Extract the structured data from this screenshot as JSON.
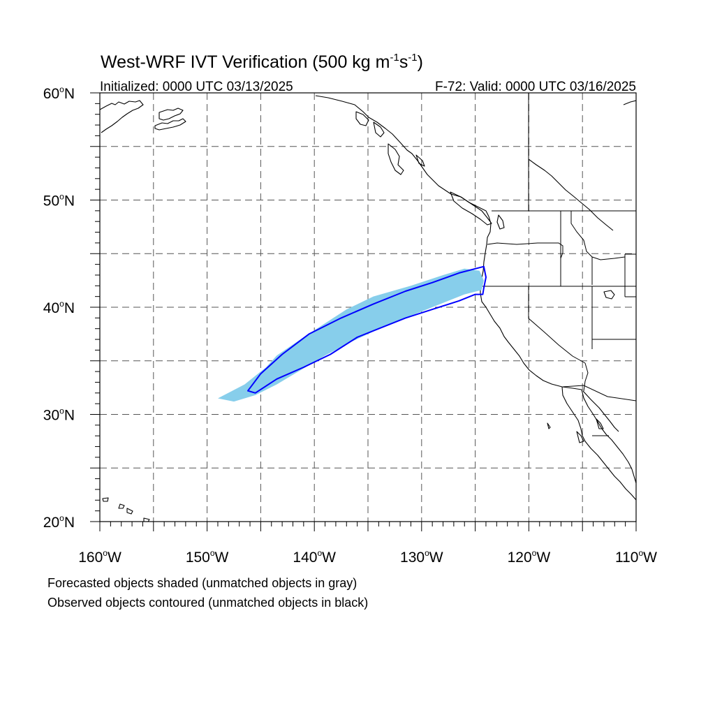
{
  "title": {
    "prefix": "West-WRF IVT Verification (500 kg m",
    "exp1": "-1",
    "mid": "s",
    "exp2": "-1",
    "suffix": ")"
  },
  "subtitle_left": "Initialized: 0000 UTC 03/13/2025",
  "subtitle_right": "F-72: Valid: 0000 UTC 03/16/2025",
  "axes": {
    "lon_range": [
      -160,
      -110
    ],
    "lat_range": [
      20,
      60
    ],
    "x_ticks": [
      {
        "value": -160,
        "label": "160",
        "hemi": "W"
      },
      {
        "value": -150,
        "label": "150",
        "hemi": "W"
      },
      {
        "value": -140,
        "label": "140",
        "hemi": "W"
      },
      {
        "value": -130,
        "label": "130",
        "hemi": "W"
      },
      {
        "value": -120,
        "label": "120",
        "hemi": "W"
      },
      {
        "value": -110,
        "label": "110",
        "hemi": "W"
      }
    ],
    "y_ticks": [
      {
        "value": 60,
        "label": "60",
        "hemi": "N"
      },
      {
        "value": 50,
        "label": "50",
        "hemi": "N"
      },
      {
        "value": 40,
        "label": "40",
        "hemi": "N"
      },
      {
        "value": 30,
        "label": "30",
        "hemi": "N"
      },
      {
        "value": 20,
        "label": "20",
        "hemi": "N"
      }
    ],
    "grid_lons": [
      -155,
      -150,
      -145,
      -140,
      -135,
      -130,
      -125,
      -120,
      -115
    ],
    "grid_lats": [
      55,
      50,
      45,
      40,
      35,
      30,
      25
    ],
    "grid": true
  },
  "legend": {
    "line1": "Forecasted objects shaded (unmatched objects in gray)",
    "line2": "Observed objects contoured (unmatched objects in black)"
  },
  "colors": {
    "forecast_fill": "#87CEEB",
    "observed_contour": "#0000FF",
    "coast": "#000000",
    "grid": "#555555"
  },
  "objects": {
    "forecast_object": {
      "fill": "#87CEEB",
      "lonlat": [
        [
          -149,
          31.5
        ],
        [
          -146.5,
          32.8
        ],
        [
          -144.5,
          34.4
        ],
        [
          -143.5,
          35.5
        ],
        [
          -141,
          37.2
        ],
        [
          -139,
          38.5
        ],
        [
          -137,
          39.8
        ],
        [
          -134.5,
          41
        ],
        [
          -131,
          42
        ],
        [
          -128,
          43
        ],
        [
          -126,
          43.6
        ],
        [
          -124.6,
          43.4
        ],
        [
          -124.2,
          42.5
        ],
        [
          -124.4,
          41.6
        ],
        [
          -126,
          41.2
        ],
        [
          -128.5,
          40.2
        ],
        [
          -131,
          39.2
        ],
        [
          -133.5,
          38.2
        ],
        [
          -136.5,
          36.8
        ],
        [
          -139,
          35.5
        ],
        [
          -141.5,
          34
        ],
        [
          -143.5,
          32.8
        ],
        [
          -145.5,
          31.8
        ],
        [
          -147.5,
          31.2
        ]
      ]
    },
    "observed_object": {
      "stroke": "#0000FF",
      "lonlat": [
        [
          -146.2,
          32.2
        ],
        [
          -145,
          33.8
        ],
        [
          -143,
          35.6
        ],
        [
          -140.5,
          37.5
        ],
        [
          -137.5,
          39
        ],
        [
          -134.5,
          40.3
        ],
        [
          -131.5,
          41.5
        ],
        [
          -129,
          42.3
        ],
        [
          -126.5,
          43.2
        ],
        [
          -124.2,
          43.8
        ],
        [
          -124,
          42.8
        ],
        [
          -124.2,
          41.8
        ],
        [
          -124.3,
          41.2
        ],
        [
          -125,
          41.2
        ],
        [
          -126.5,
          40.6
        ],
        [
          -129,
          39.8
        ],
        [
          -131.5,
          39
        ],
        [
          -134,
          38
        ],
        [
          -136,
          37.2
        ],
        [
          -138.5,
          35.6
        ],
        [
          -141,
          34.4
        ],
        [
          -143.5,
          33.3
        ],
        [
          -145.5,
          32
        ]
      ]
    }
  }
}
